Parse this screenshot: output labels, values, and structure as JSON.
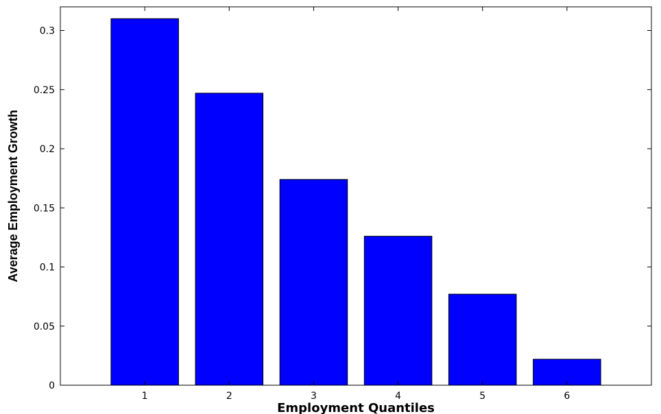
{
  "chart_data": {
    "type": "bar",
    "title": "",
    "xlabel": "Employment Quantiles",
    "ylabel": "Average Employment Growth",
    "categories": [
      "1",
      "2",
      "3",
      "4",
      "5",
      "6"
    ],
    "values": [
      0.31,
      0.247,
      0.174,
      0.126,
      0.077,
      0.022
    ],
    "y_ticks": [
      "0",
      "0.05",
      "0.1",
      "0.15",
      "0.2",
      "0.25",
      "0.3"
    ],
    "ylim": [
      0,
      0.32
    ],
    "xlim": [
      0,
      7
    ],
    "grid": false,
    "legend": "none",
    "bar_color": "#0000ff",
    "bar_edge_color": "#000000"
  }
}
